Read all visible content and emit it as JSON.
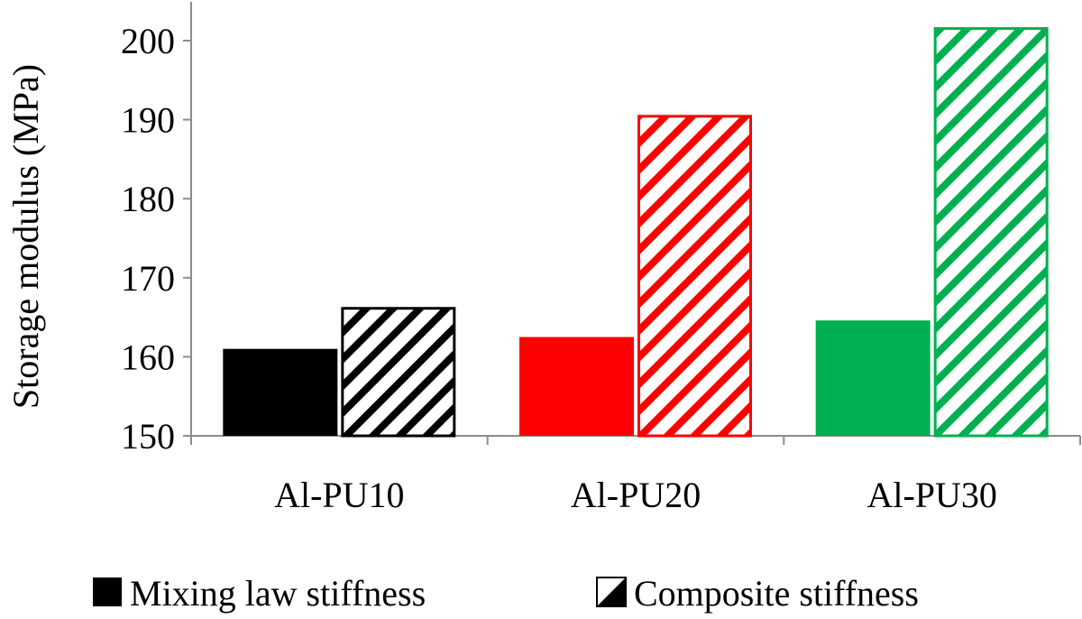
{
  "chart_data": {
    "type": "bar",
    "categories": [
      "Al-PU10",
      "Al-PU20",
      "Al-PU30"
    ],
    "series": [
      {
        "name": "Mixing law stiffness",
        "values": [
          161.0,
          162.5,
          164.6
        ],
        "style": "solid"
      },
      {
        "name": "Composite stiffness",
        "values": [
          166.3,
          190.6,
          201.7
        ],
        "style": "hatched"
      }
    ],
    "category_colors": [
      "#000000",
      "#ff0000",
      "#00b050"
    ],
    "ylabel": "Storage modulus (MPa)",
    "xlabel": "",
    "ylim": [
      150,
      200
    ],
    "yticks": [
      "150",
      "160",
      "170",
      "180",
      "190",
      "200"
    ],
    "grid": false,
    "legend_position": "bottom"
  }
}
